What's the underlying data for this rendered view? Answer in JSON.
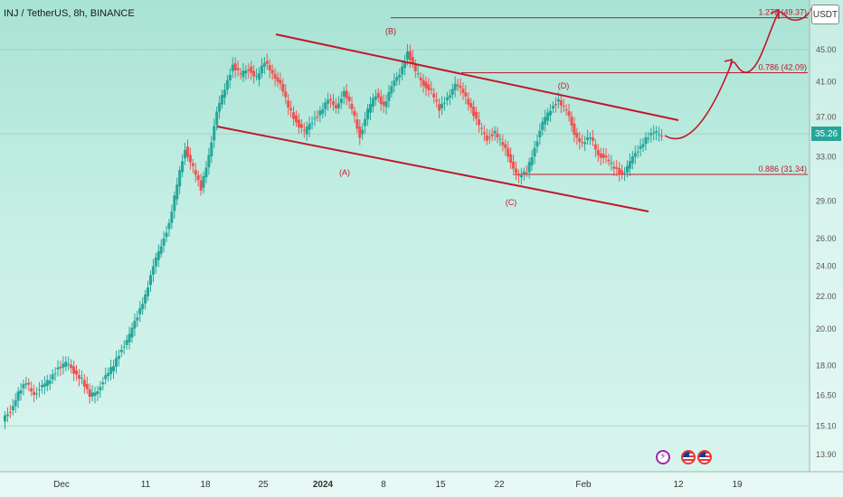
{
  "header": {
    "symbol": "INJ / TetherUS, 8h, BINANCE"
  },
  "currency_button": {
    "label": "USDT"
  },
  "last_price": {
    "label": "35.26",
    "value": 35.26,
    "color": "#26a69a"
  },
  "events": {
    "lightning_icon": "lightning-icon",
    "flag_icon": "us-flag-icon",
    "lightning_glyph": "⚡"
  },
  "colors": {
    "up": "#26a69a",
    "down": "#ef5350",
    "annotation": "#c0182c"
  },
  "chart_data": {
    "type": "candlestick",
    "x_ticks": [
      "Dec",
      "11",
      "18",
      "25",
      "2024",
      "8",
      "15",
      "22",
      "Feb",
      "12",
      "19"
    ],
    "y_ticks": [
      "45.00",
      "41.00",
      "37.00",
      "33.00",
      "29.00",
      "26.00",
      "24.00",
      "22.00",
      "20.00",
      "18.00",
      "16.50",
      "15.10",
      "13.90"
    ],
    "y_scale": "log",
    "levels": [
      {
        "label": "1.272 (49.37)",
        "value": 49.37
      },
      {
        "label": "0.786 (42.09)",
        "value": 42.09
      },
      {
        "label": "0.886 (31.34)",
        "value": 31.34
      }
    ],
    "wave_labels": [
      {
        "label": "(A)",
        "value": 31.5
      },
      {
        "label": "(B)",
        "value": 47.5
      },
      {
        "label": "(C)",
        "value": 28.9
      },
      {
        "label": "(D)",
        "value": 40.5
      }
    ],
    "price_path": [
      15.3,
      15.8,
      16.6,
      17.1,
      16.6,
      16.9,
      17.3,
      17.9,
      18.1,
      17.7,
      17.3,
      16.4,
      16.8,
      17.4,
      18.0,
      18.9,
      19.6,
      20.8,
      22.1,
      23.9,
      25.6,
      27.1,
      30.4,
      33.8,
      31.9,
      30.0,
      33.2,
      37.4,
      40.3,
      43.0,
      41.8,
      42.6,
      41.5,
      43.3,
      42.2,
      40.5,
      38.2,
      36.5,
      35.4,
      36.6,
      37.6,
      38.8,
      38.2,
      39.7,
      37.9,
      35.0,
      37.7,
      39.5,
      38.3,
      40.3,
      42.1,
      44.6,
      42.2,
      40.8,
      39.8,
      37.8,
      39.3,
      40.5,
      39.9,
      38.0,
      36.0,
      34.8,
      35.4,
      34.1,
      32.6,
      31.0,
      31.6,
      33.9,
      36.3,
      37.9,
      38.9,
      37.6,
      35.4,
      34.2,
      34.9,
      33.3,
      32.7,
      32.0,
      31.3,
      32.4,
      33.7,
      34.8,
      35.3,
      35.26
    ]
  }
}
